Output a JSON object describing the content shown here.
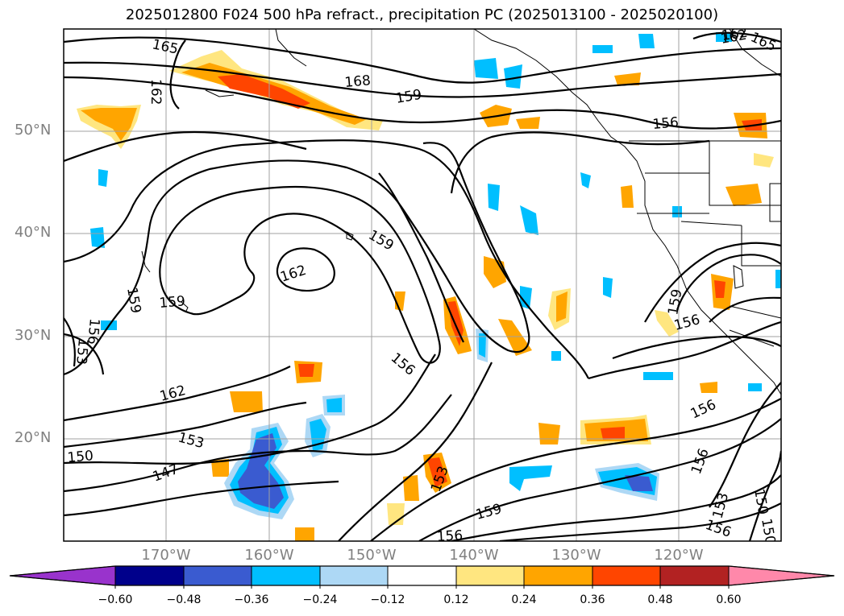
{
  "title": "2025012800 F024 500 hPa refract., precipitation PC (2025013100 - 2025020100)",
  "map": {
    "lat_labels": [
      "50°N",
      "40°N",
      "30°N",
      "20°N"
    ],
    "lon_labels": [
      "170°W",
      "160°W",
      "150°W",
      "140°W",
      "130°W",
      "120°W"
    ],
    "contour_labels": [
      "165",
      "162",
      "168",
      "159",
      "156",
      "162",
      "159",
      "162",
      "159",
      "156",
      "153",
      "159",
      "156",
      "162",
      "153",
      "150",
      "150",
      "147",
      "153",
      "159",
      "156",
      "156",
      "156",
      "153",
      "150",
      "156",
      "162",
      "165",
      "159"
    ]
  },
  "colorbar": {
    "ticks": [
      "−0.60",
      "−0.48",
      "−0.36",
      "−0.24",
      "−0.12",
      "0.12",
      "0.24",
      "0.36",
      "0.48",
      "0.60"
    ],
    "colors": [
      "#9933cc",
      "#00008b",
      "#3a5bd0",
      "#00bfff",
      "#add8f5",
      "#ffffff",
      "#ffe680",
      "#ffa500",
      "#ff4500",
      "#b22222",
      "#ff88aa"
    ]
  }
}
